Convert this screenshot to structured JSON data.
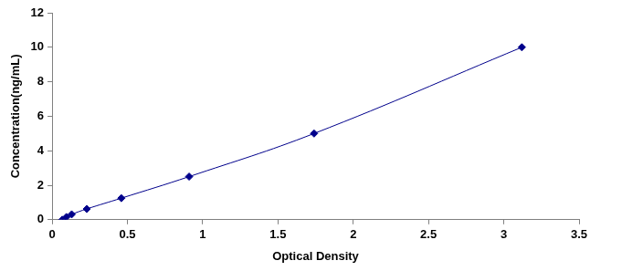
{
  "chart_data": {
    "type": "line",
    "x_label": "Optical Density",
    "y_label": "Concentration(ng/mL)",
    "x": [
      0.067,
      0.095,
      0.13,
      0.23,
      0.46,
      0.91,
      1.74,
      3.12
    ],
    "values": [
      0,
      0.156,
      0.312,
      0.625,
      1.25,
      2.5,
      5,
      10
    ],
    "color": "#00008b",
    "marker": "diamond",
    "line_style": "smooth",
    "xlim": [
      0,
      3.5
    ],
    "xticks": [
      0,
      0.5,
      1,
      1.5,
      2,
      2.5,
      3,
      3.5
    ],
    "ylim": [
      0,
      12
    ],
    "yticks": [
      0,
      2,
      4,
      6,
      8,
      10,
      12
    ],
    "grid": false
  }
}
